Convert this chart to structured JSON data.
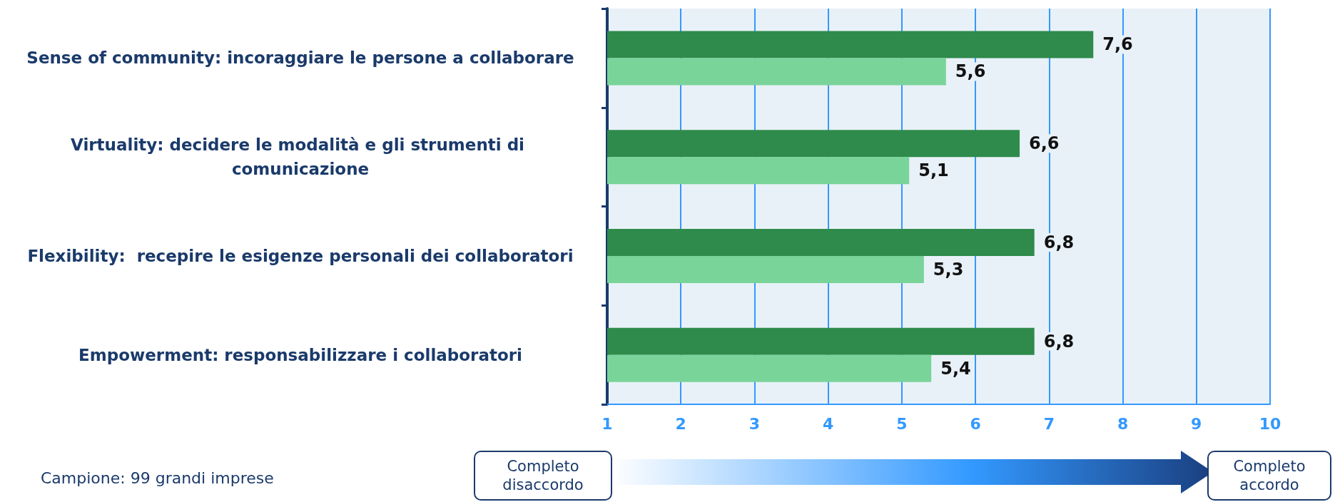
{
  "chart_data": {
    "type": "bar",
    "orientation": "horizontal",
    "categories": [
      "Sense of community: incoraggiare le persone a collaborare",
      "Virtuality: decidere le modalità e gli strumenti di comunicazione",
      "Flexibility:  recepire le esigenze personali dei collaboratori",
      "Empowerment: responsabilizzare i collaboratori"
    ],
    "series": [
      {
        "color": "#2e8b4b",
        "values": [
          7.6,
          6.6,
          6.8,
          6.8
        ],
        "value_labels": [
          "7,6",
          "6,6",
          "6,8",
          "6,8"
        ]
      },
      {
        "color": "#79d49a",
        "values": [
          5.6,
          5.1,
          5.3,
          5.4
        ],
        "value_labels": [
          "5,6",
          "5,1",
          "5,3",
          "5,4"
        ]
      }
    ],
    "xlim": [
      1,
      10
    ],
    "xticks": [
      1,
      2,
      3,
      4,
      5,
      6,
      7,
      8,
      9,
      10
    ],
    "grid": "x",
    "annotations": [
      "Campione: 99 grandi imprese",
      "Completo disaccordo",
      "Completo accordo"
    ]
  }
}
